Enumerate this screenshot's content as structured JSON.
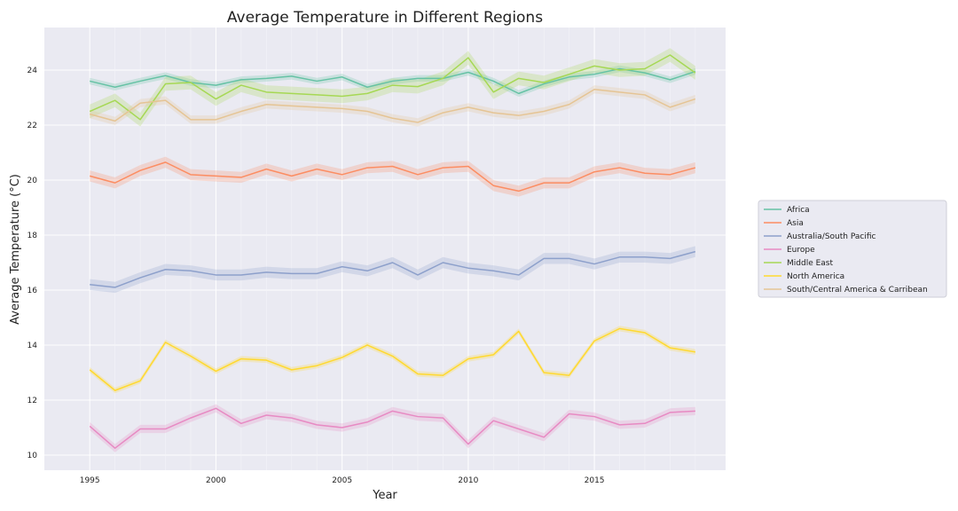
{
  "chart_data": {
    "type": "line",
    "title": "Average Temperature in Different Regions",
    "xlabel": "Year",
    "ylabel": "Average Temperature (°C)",
    "xlim": [
      1993.2,
      2020.2
    ],
    "ylim": [
      9.45,
      25.55
    ],
    "xticks": [
      1995,
      2000,
      2005,
      2010,
      2015
    ],
    "yticks": [
      10,
      12,
      14,
      16,
      18,
      20,
      22,
      24
    ],
    "grid": true,
    "legend_position": "center-right",
    "x": [
      1995,
      1996,
      1997,
      1998,
      1999,
      2000,
      2001,
      2002,
      2003,
      2004,
      2005,
      2006,
      2007,
      2008,
      2009,
      2010,
      2011,
      2012,
      2013,
      2014,
      2015,
      2016,
      2017,
      2018,
      2019
    ],
    "series": [
      {
        "name": "Africa",
        "color": "#66c2a5",
        "band": 0.12,
        "values": [
          23.6,
          23.38,
          23.6,
          23.8,
          23.55,
          23.45,
          23.65,
          23.7,
          23.78,
          23.6,
          23.75,
          23.38,
          23.6,
          23.7,
          23.7,
          23.92,
          23.6,
          23.15,
          23.5,
          23.75,
          23.85,
          24.05,
          23.9,
          23.65,
          23.95
        ]
      },
      {
        "name": "Asia",
        "color": "#fc8d62",
        "band": 0.2,
        "values": [
          20.15,
          19.9,
          20.35,
          20.65,
          20.2,
          20.15,
          20.1,
          20.4,
          20.15,
          20.4,
          20.2,
          20.45,
          20.5,
          20.2,
          20.45,
          20.5,
          19.8,
          19.6,
          19.9,
          19.9,
          20.3,
          20.45,
          20.25,
          20.2,
          20.45
        ]
      },
      {
        "name": "Australia/South Pacific",
        "color": "#8da0cb",
        "band": 0.2,
        "values": [
          16.2,
          16.1,
          16.45,
          16.75,
          16.7,
          16.55,
          16.55,
          16.65,
          16.6,
          16.6,
          16.85,
          16.7,
          17.0,
          16.55,
          17.0,
          16.8,
          16.7,
          16.55,
          17.15,
          17.15,
          16.95,
          17.2,
          17.2,
          17.15,
          17.4
        ]
      },
      {
        "name": "Europe",
        "color": "#e78ac3",
        "band": 0.15,
        "values": [
          11.05,
          10.25,
          10.95,
          10.95,
          11.35,
          11.7,
          11.15,
          11.45,
          11.35,
          11.1,
          11.0,
          11.2,
          11.6,
          11.4,
          11.35,
          10.4,
          11.25,
          10.95,
          10.65,
          11.5,
          11.4,
          11.1,
          11.15,
          11.55,
          11.6
        ]
      },
      {
        "name": "Middle East",
        "color": "#a6d854",
        "band": 0.25,
        "values": [
          22.5,
          22.9,
          22.2,
          23.5,
          23.55,
          22.95,
          23.45,
          23.2,
          23.15,
          23.1,
          23.05,
          23.15,
          23.45,
          23.4,
          23.7,
          24.45,
          23.2,
          23.7,
          23.55,
          23.85,
          24.15,
          24.0,
          24.05,
          24.55,
          23.9
        ]
      },
      {
        "name": "North America",
        "color": "#ffd92f",
        "band": 0.1,
        "values": [
          13.1,
          12.35,
          12.7,
          14.1,
          13.6,
          13.05,
          13.5,
          13.45,
          13.1,
          13.25,
          13.55,
          14.0,
          13.6,
          12.95,
          12.9,
          13.5,
          13.65,
          14.5,
          13.0,
          12.9,
          14.15,
          14.6,
          14.45,
          13.9,
          13.75
        ]
      },
      {
        "name": "South/Central America & Carribean",
        "color": "#e5c494",
        "band": 0.15,
        "values": [
          22.4,
          22.15,
          22.8,
          22.9,
          22.2,
          22.2,
          22.5,
          22.75,
          22.7,
          22.65,
          22.6,
          22.5,
          22.25,
          22.1,
          22.45,
          22.65,
          22.45,
          22.35,
          22.5,
          22.75,
          23.3,
          23.2,
          23.1,
          22.65,
          22.95
        ]
      }
    ]
  }
}
